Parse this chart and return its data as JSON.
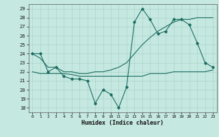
{
  "xlabel": "Humidex (Indice chaleur)",
  "bg_color": "#c5e8e0",
  "grid_color": "#aad4cc",
  "line_color": "#1a6b60",
  "xlim": [
    -0.5,
    23.5
  ],
  "ylim": [
    17.5,
    29.5
  ],
  "yticks": [
    18,
    19,
    20,
    21,
    22,
    23,
    24,
    25,
    26,
    27,
    28,
    29
  ],
  "xticks": [
    0,
    1,
    2,
    3,
    4,
    5,
    6,
    7,
    8,
    9,
    10,
    11,
    12,
    13,
    14,
    15,
    16,
    17,
    18,
    19,
    20,
    21,
    22,
    23
  ],
  "series1_x": [
    0,
    1,
    2,
    3,
    4,
    5,
    6,
    7,
    8,
    9,
    10,
    11,
    12,
    13,
    14,
    15,
    16,
    17,
    18,
    19,
    20,
    21,
    22,
    23
  ],
  "series1_y": [
    24.0,
    24.0,
    22.0,
    22.5,
    21.5,
    21.2,
    21.2,
    21.0,
    18.5,
    20.0,
    19.5,
    18.0,
    20.3,
    27.5,
    29.0,
    27.8,
    26.2,
    26.5,
    27.8,
    27.8,
    27.2,
    25.2,
    23.0,
    22.5
  ],
  "series2_x": [
    0,
    1,
    2,
    3,
    4,
    5,
    6,
    7,
    8,
    9,
    10,
    11,
    12,
    13,
    14,
    15,
    16,
    17,
    18,
    19,
    20,
    21,
    22,
    23
  ],
  "series2_y": [
    24.0,
    23.5,
    22.5,
    22.5,
    22.0,
    22.0,
    21.8,
    21.8,
    22.0,
    22.0,
    22.2,
    22.5,
    23.0,
    24.0,
    25.0,
    25.8,
    26.5,
    27.0,
    27.5,
    27.8,
    27.8,
    28.0,
    28.0,
    28.0
  ],
  "series3_x": [
    0,
    1,
    2,
    3,
    4,
    5,
    6,
    7,
    8,
    9,
    10,
    11,
    12,
    13,
    14,
    15,
    16,
    17,
    18,
    19,
    20,
    21,
    22,
    23
  ],
  "series3_y": [
    22.0,
    21.8,
    21.8,
    21.8,
    21.8,
    21.7,
    21.5,
    21.5,
    21.5,
    21.5,
    21.5,
    21.5,
    21.5,
    21.5,
    21.5,
    21.8,
    21.8,
    21.8,
    22.0,
    22.0,
    22.0,
    22.0,
    22.0,
    22.2
  ]
}
